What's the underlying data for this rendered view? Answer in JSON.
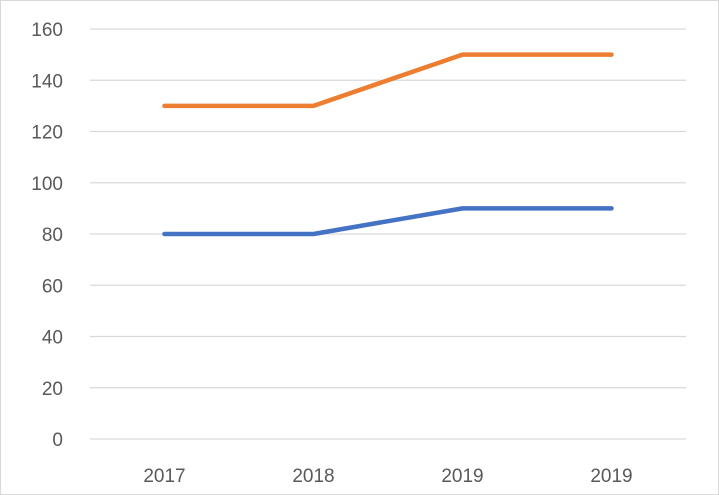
{
  "chart_data": {
    "type": "line",
    "title": "",
    "xlabel": "",
    "ylabel": "",
    "categories": [
      "2017",
      "2018",
      "2019",
      "2019"
    ],
    "ylim": [
      0,
      160
    ],
    "yticks": [
      0,
      20,
      40,
      60,
      80,
      100,
      120,
      140,
      160
    ],
    "grid": true,
    "legend": "none",
    "series": [
      {
        "values": [
          130,
          130,
          150,
          150
        ],
        "color": "#ED7D31"
      },
      {
        "values": [
          80,
          80,
          90,
          90
        ],
        "color": "#4472C4"
      }
    ]
  }
}
